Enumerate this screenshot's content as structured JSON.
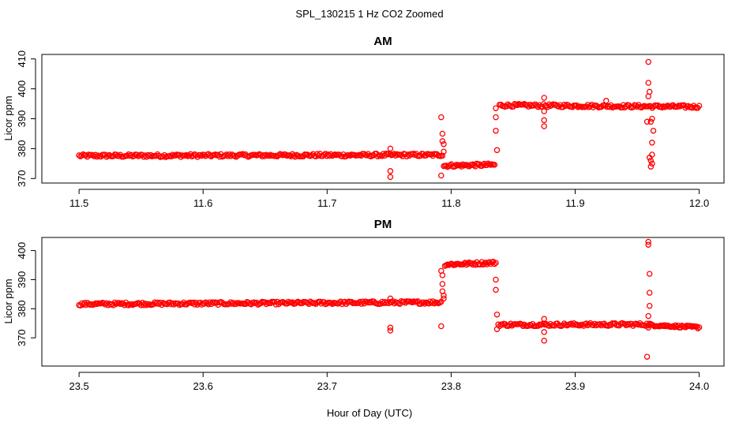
{
  "figure_title": "SPL_130215  1 Hz CO2 Zoomed",
  "x_axis_label": "Hour of Day (UTC)",
  "colors": {
    "points": "#ff0000",
    "axes": "#000000",
    "background": "#ffffff"
  },
  "chart_data": [
    {
      "type": "scatter",
      "title": "AM",
      "xlabel": "Hour of Day (UTC)",
      "ylabel": "Licor ppm",
      "xlim": [
        11.47,
        12.02
      ],
      "ylim": [
        368.5,
        411.5
      ],
      "xticks": [
        11.5,
        11.6,
        11.7,
        11.8,
        11.9,
        12.0
      ],
      "xtick_labels": [
        "11.5",
        "11.6",
        "11.7",
        "11.8",
        "11.9",
        "12.0"
      ],
      "yticks": [
        370,
        380,
        390,
        400,
        410
      ],
      "ytick_labels": [
        "370",
        "380",
        "390",
        "400",
        "410"
      ],
      "marker": "open-circle",
      "segments": [
        {
          "x_start": 11.5,
          "x_end": 11.793,
          "y_start": 377.6,
          "y_end": 377.9,
          "noise": 0.5
        },
        {
          "x_start": 11.794,
          "x_end": 11.835,
          "y_start": 374.3,
          "y_end": 374.6,
          "noise": 0.5
        },
        {
          "x_start": 11.839,
          "x_end": 12.0,
          "y_start": 394.5,
          "y_end": 394.0,
          "noise": 0.5
        }
      ],
      "points": [
        {
          "x": 11.751,
          "y": 380
        },
        {
          "x": 11.751,
          "y": 372.5
        },
        {
          "x": 11.751,
          "y": 370.5
        },
        {
          "x": 11.792,
          "y": 390.5
        },
        {
          "x": 11.793,
          "y": 385
        },
        {
          "x": 11.793,
          "y": 382.5
        },
        {
          "x": 11.794,
          "y": 381.5
        },
        {
          "x": 11.792,
          "y": 371
        },
        {
          "x": 11.794,
          "y": 379
        },
        {
          "x": 11.836,
          "y": 386
        },
        {
          "x": 11.836,
          "y": 390.5
        },
        {
          "x": 11.837,
          "y": 379.5
        },
        {
          "x": 11.836,
          "y": 393.5
        },
        {
          "x": 11.875,
          "y": 397
        },
        {
          "x": 11.875,
          "y": 392.5
        },
        {
          "x": 11.875,
          "y": 389.5
        },
        {
          "x": 11.875,
          "y": 387.5
        },
        {
          "x": 11.925,
          "y": 396
        },
        {
          "x": 11.959,
          "y": 409
        },
        {
          "x": 11.959,
          "y": 402
        },
        {
          "x": 11.96,
          "y": 399
        },
        {
          "x": 11.959,
          "y": 397.5
        },
        {
          "x": 11.958,
          "y": 389
        },
        {
          "x": 11.961,
          "y": 389
        },
        {
          "x": 11.962,
          "y": 390
        },
        {
          "x": 11.963,
          "y": 386
        },
        {
          "x": 11.962,
          "y": 382
        },
        {
          "x": 11.96,
          "y": 377
        },
        {
          "x": 11.961,
          "y": 376
        },
        {
          "x": 11.962,
          "y": 375
        },
        {
          "x": 11.961,
          "y": 374
        },
        {
          "x": 11.962,
          "y": 378
        }
      ]
    },
    {
      "type": "scatter",
      "title": "PM",
      "xlabel": "Hour of Day (UTC)",
      "ylabel": "Licor ppm",
      "xlim": [
        23.47,
        24.02
      ],
      "ylim": [
        360.3,
        404.5
      ],
      "xticks": [
        23.5,
        23.6,
        23.7,
        23.8,
        23.9,
        24.0
      ],
      "xtick_labels": [
        "23.5",
        "23.6",
        "23.7",
        "23.8",
        "23.9",
        "24.0"
      ],
      "yticks": [
        370,
        380,
        390,
        400
      ],
      "ytick_labels": [
        "370",
        "380",
        "390",
        "400"
      ],
      "marker": "open-circle",
      "segments": [
        {
          "x_start": 23.5,
          "x_end": 23.792,
          "y_start": 381.6,
          "y_end": 382.2,
          "noise": 0.5
        },
        {
          "x_start": 23.795,
          "x_end": 23.836,
          "y_start": 395.2,
          "y_end": 395.8,
          "noise": 0.5
        },
        {
          "x_start": 23.838,
          "x_end": 23.96,
          "y_start": 374.5,
          "y_end": 374.6,
          "noise": 0.5
        },
        {
          "x_start": 23.96,
          "x_end": 24.0,
          "y_start": 374.4,
          "y_end": 373.6,
          "noise": 0.4
        }
      ],
      "points": [
        {
          "x": 23.751,
          "y": 383.5
        },
        {
          "x": 23.751,
          "y": 373.5
        },
        {
          "x": 23.751,
          "y": 372.5
        },
        {
          "x": 23.792,
          "y": 393
        },
        {
          "x": 23.793,
          "y": 391.5
        },
        {
          "x": 23.793,
          "y": 388.5
        },
        {
          "x": 23.793,
          "y": 386
        },
        {
          "x": 23.794,
          "y": 384.5
        },
        {
          "x": 23.792,
          "y": 374
        },
        {
          "x": 23.794,
          "y": 383.5
        },
        {
          "x": 23.836,
          "y": 390
        },
        {
          "x": 23.836,
          "y": 386.5
        },
        {
          "x": 23.837,
          "y": 378
        },
        {
          "x": 23.837,
          "y": 373
        },
        {
          "x": 23.875,
          "y": 376.5
        },
        {
          "x": 23.875,
          "y": 372
        },
        {
          "x": 23.875,
          "y": 369
        },
        {
          "x": 23.959,
          "y": 403
        },
        {
          "x": 23.959,
          "y": 402
        },
        {
          "x": 23.96,
          "y": 392
        },
        {
          "x": 23.96,
          "y": 385.5
        },
        {
          "x": 23.96,
          "y": 381
        },
        {
          "x": 23.959,
          "y": 377.5
        },
        {
          "x": 23.959,
          "y": 373.5
        },
        {
          "x": 23.958,
          "y": 363.5
        }
      ]
    }
  ]
}
